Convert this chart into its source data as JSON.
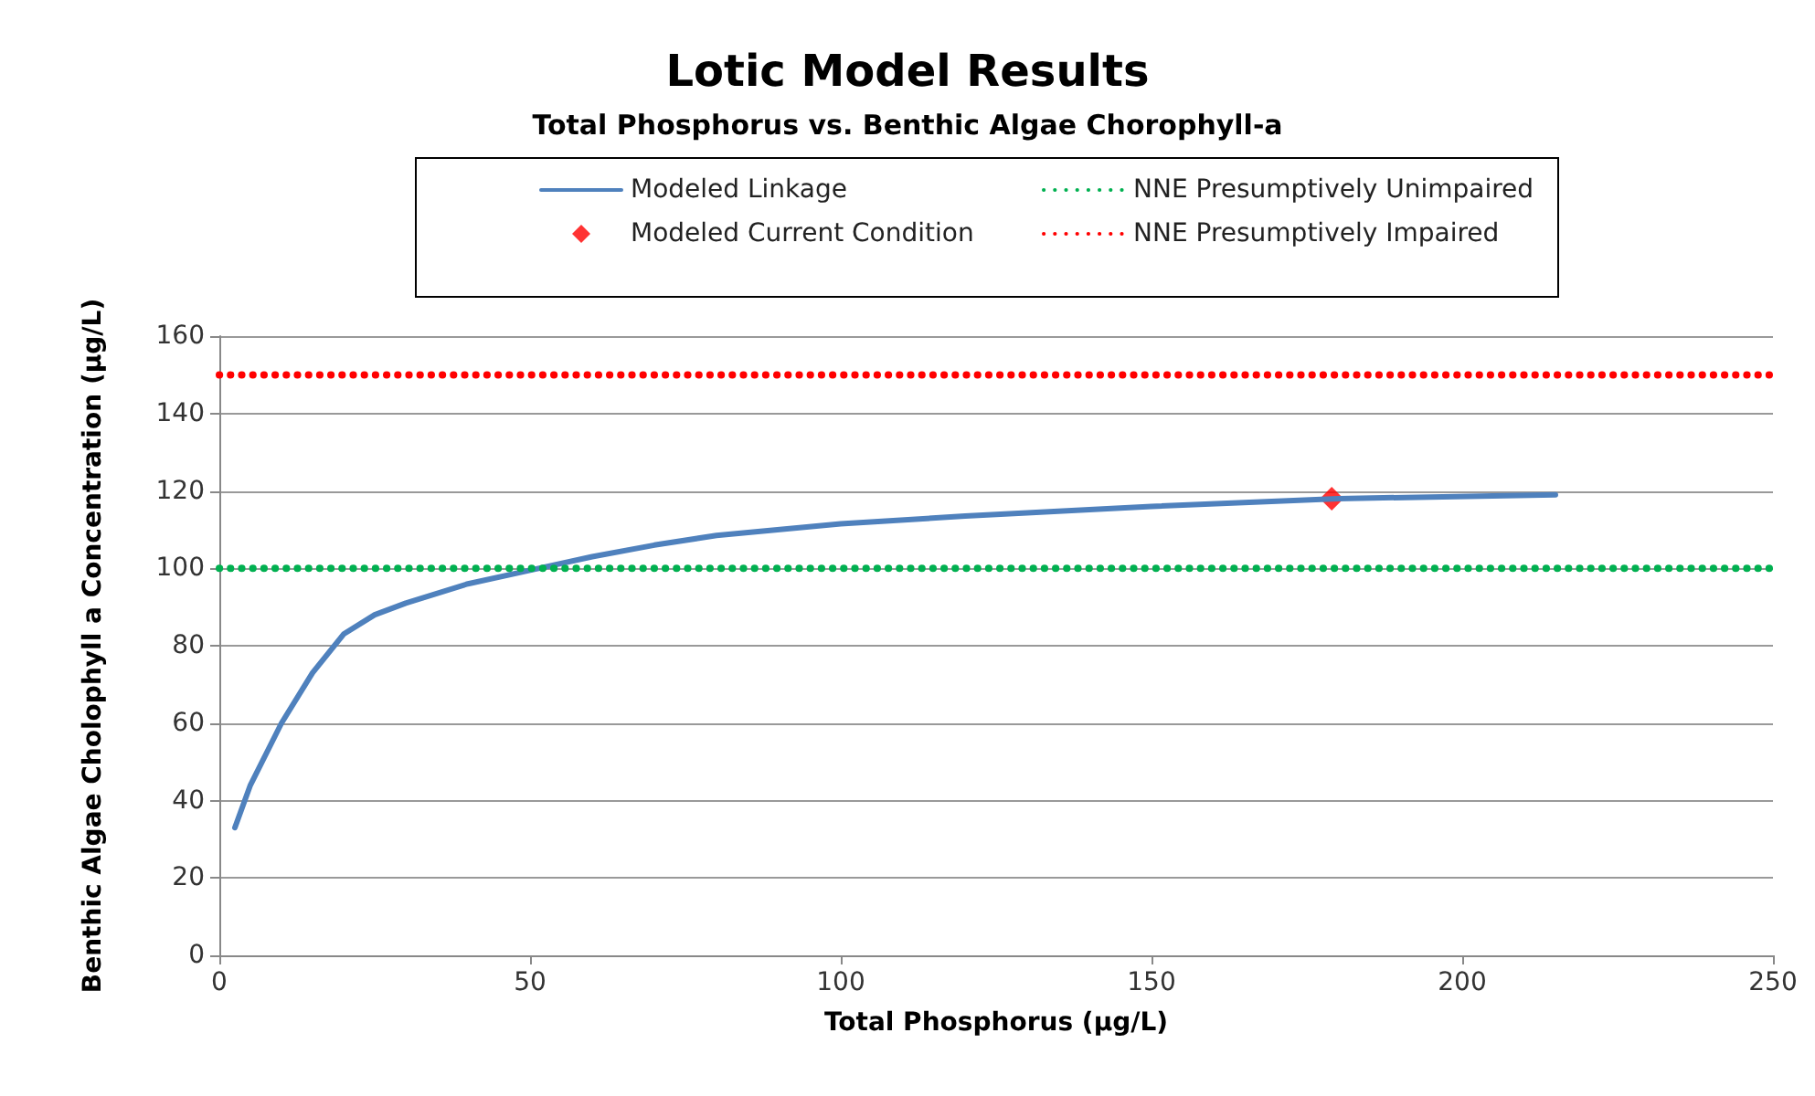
{
  "chart_data": {
    "type": "line",
    "title": "Lotic Model Results",
    "subtitle": "Total Phosphorus vs. Benthic Algae Chorophyll-a",
    "xlabel": "Total Phosphorus (µg/L)",
    "ylabel": "Benthic Algae Cholophyll a Concentration (µg/L)",
    "xlim": [
      0,
      250
    ],
    "xticks": [
      0,
      50,
      100,
      150,
      200,
      250
    ],
    "ylim": [
      0,
      160
    ],
    "yticks": [
      0,
      20,
      40,
      60,
      80,
      100,
      120,
      140,
      160
    ],
    "grid": "y",
    "legend": "top",
    "series": [
      {
        "name": "Modeled Linkage",
        "color": "#4f81bd",
        "line_style": "solid",
        "marker": "none",
        "x": [
          2.5,
          5,
          10,
          15,
          20,
          25,
          30,
          40,
          50,
          60,
          70,
          80,
          100,
          120,
          150,
          180,
          215
        ],
        "values": [
          33,
          44,
          60,
          73,
          83,
          88,
          91,
          96,
          99.5,
          103,
          106,
          108.5,
          111.5,
          113.5,
          116,
          118,
          119
        ]
      },
      {
        "name": "NNE Presumptively Unimpaired",
        "color": "#00b050",
        "line_style": "dotted",
        "marker": "none",
        "x": [
          0,
          250
        ],
        "values": [
          100,
          100
        ]
      },
      {
        "name": "Modeled Current Condition",
        "type": "scatter",
        "color": "#ff0000",
        "marker": "diamond",
        "x": [
          179
        ],
        "values": [
          118
        ]
      },
      {
        "name": "NNE Presumptively Impaired",
        "color": "#ff0000",
        "line_style": "dotted",
        "marker": "none",
        "x": [
          0,
          250
        ],
        "values": [
          150,
          150
        ]
      }
    ]
  }
}
